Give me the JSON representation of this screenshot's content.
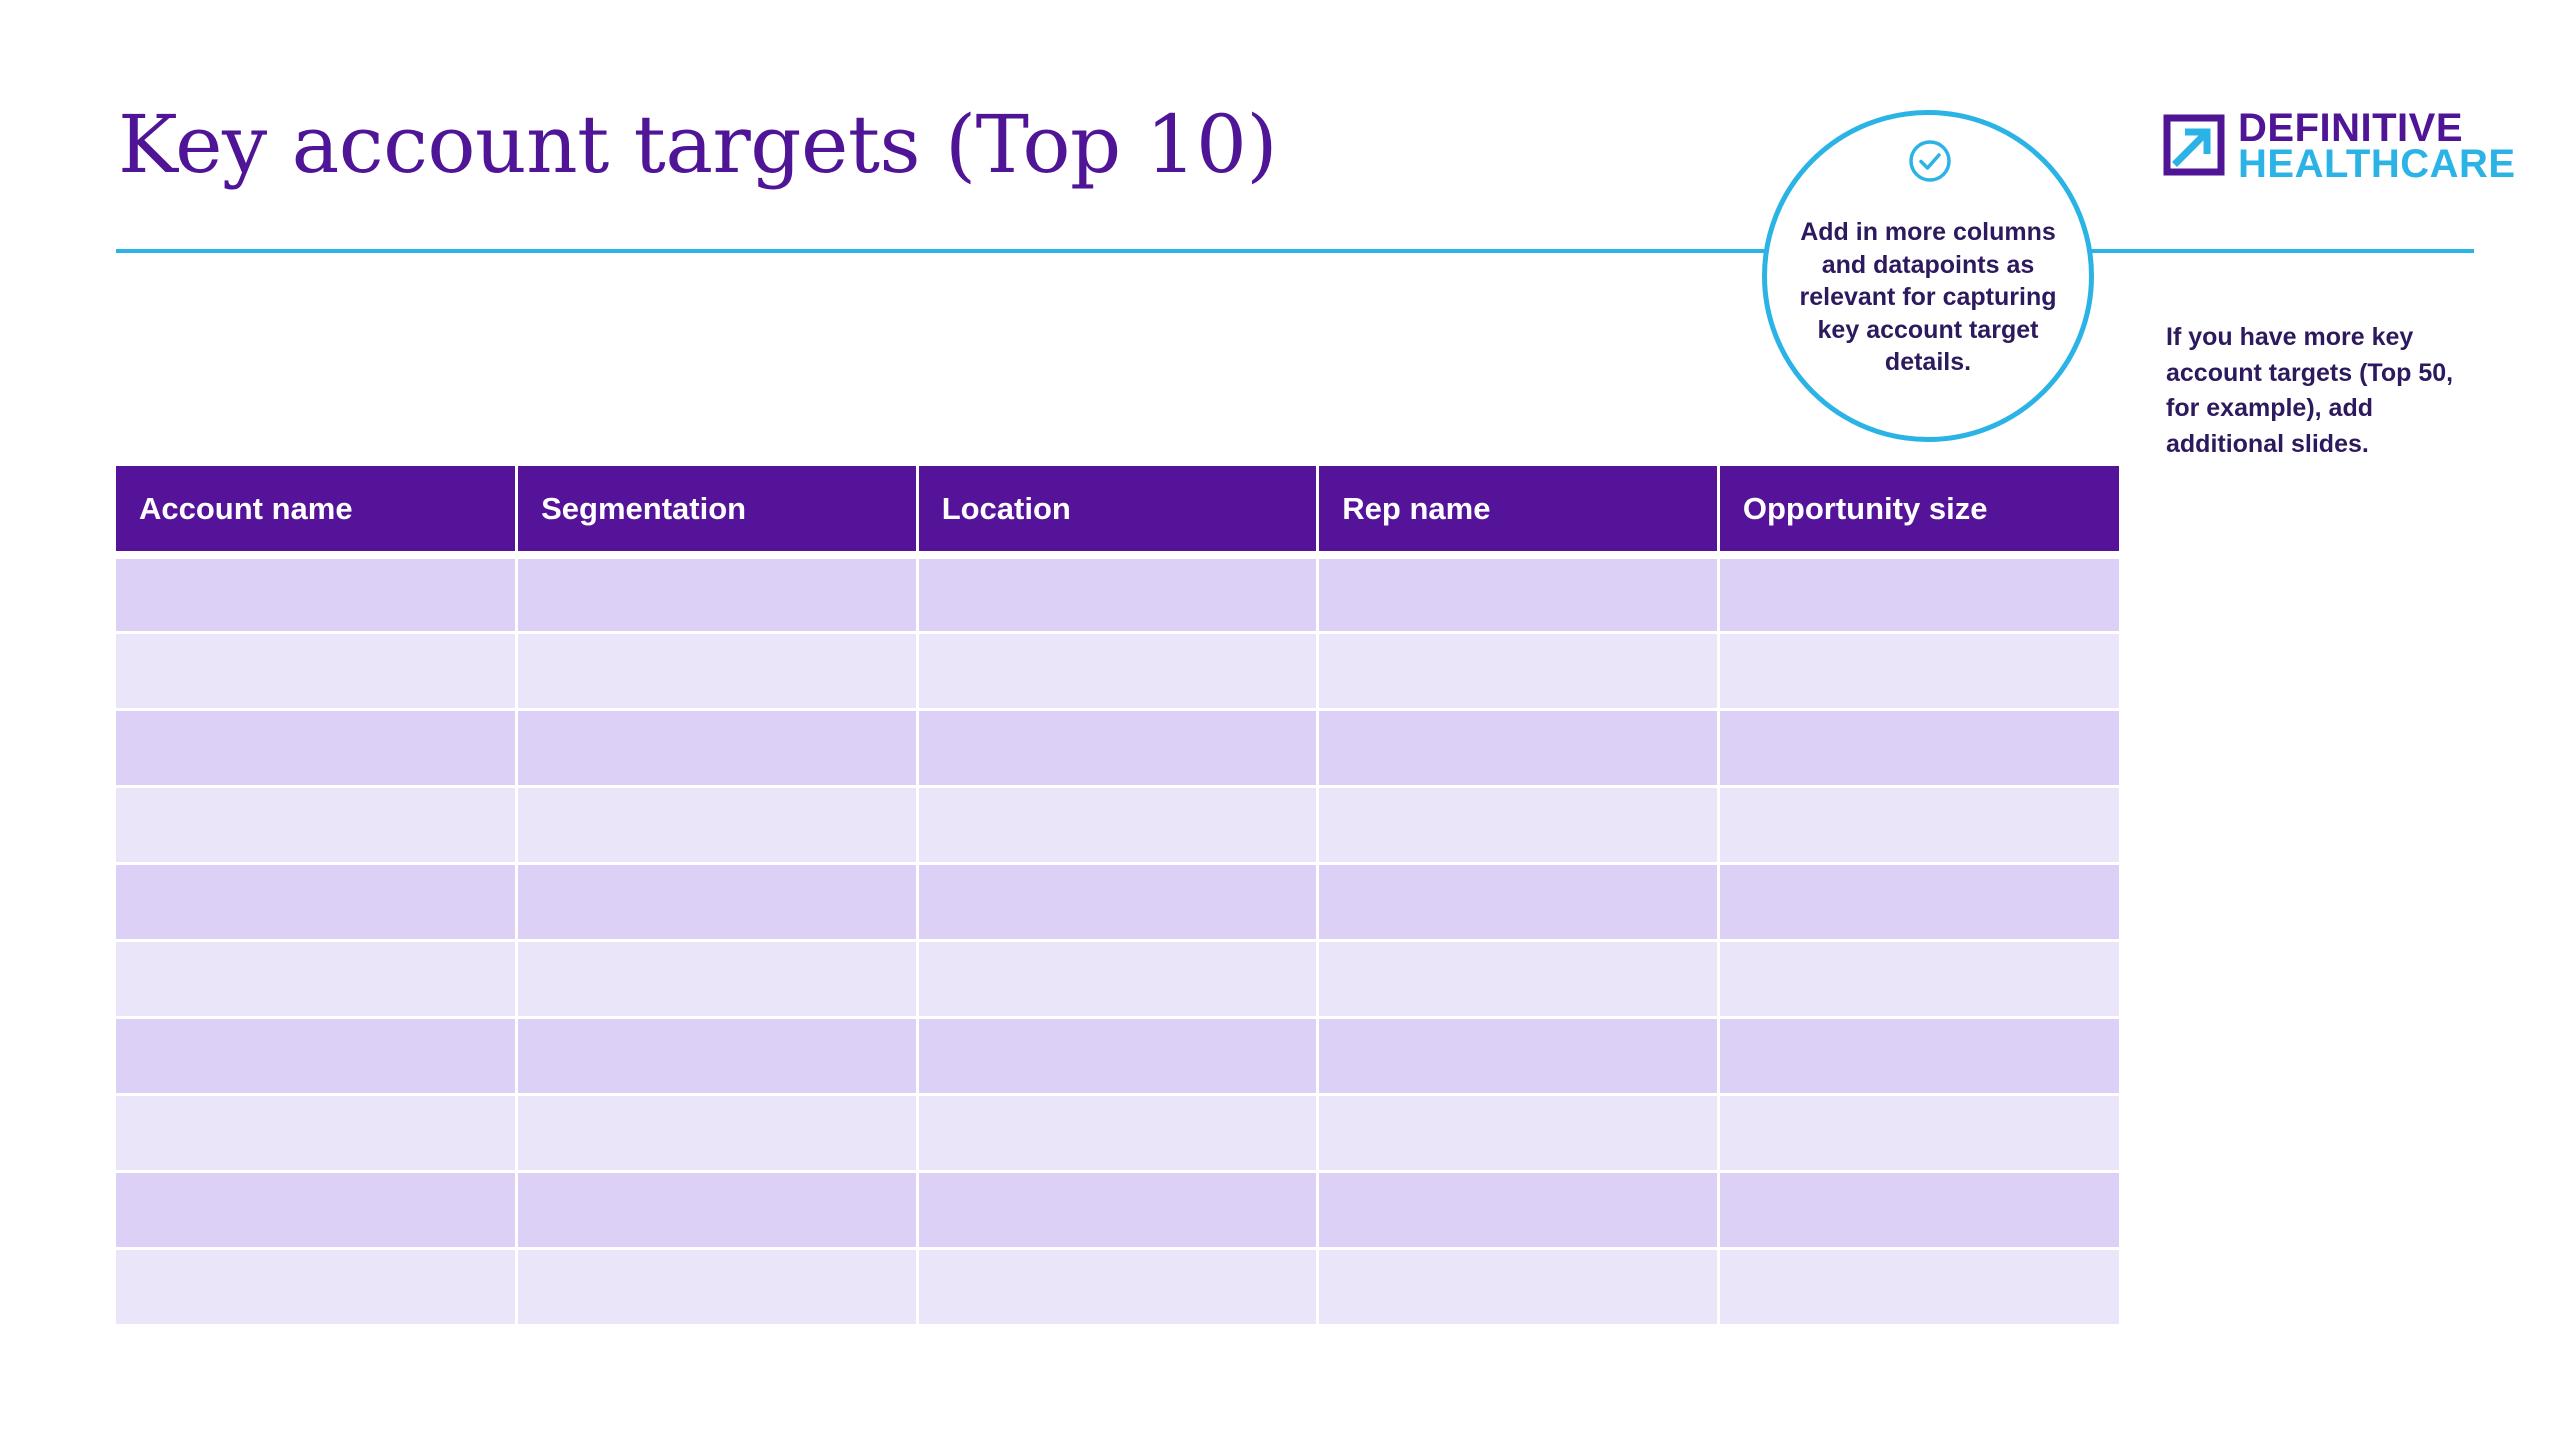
{
  "slide": {
    "title": "Key account targets (Top 10)"
  },
  "callout": {
    "icon": "check-circle-icon",
    "text": "Add in more columns and datapoints as relevant for capturing key account target details."
  },
  "logo": {
    "line1": "DEFINITIVE",
    "line2": "HEALTHCARE",
    "icon": "arrow-square-logo-icon",
    "colors": {
      "primary": "#4f1596",
      "secondary": "#2bb3e6"
    }
  },
  "side_note": "If you have more key account targets (Top 50, for example), add additional slides.",
  "table": {
    "headers": [
      "Account name",
      "Segmentation",
      "Location",
      "Rep name",
      "Opportunity size"
    ],
    "row_count": 10
  },
  "colors": {
    "accent": "#541398",
    "rule": "#2bb3e6",
    "row_dark": "#ddd0f6",
    "row_light": "#ebe5f9"
  }
}
